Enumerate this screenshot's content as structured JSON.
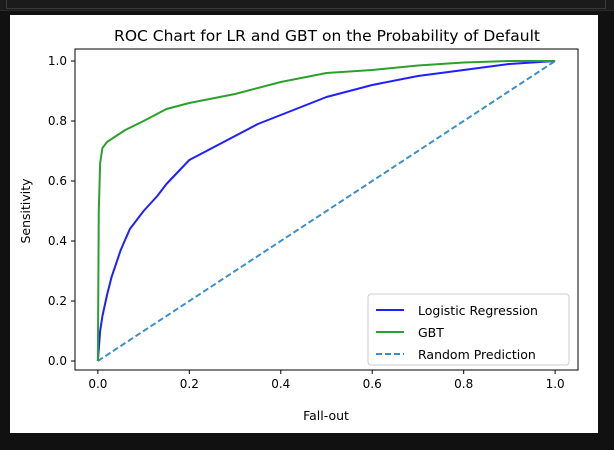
{
  "chart_data": {
    "type": "line",
    "title": "ROC Chart for LR and GBT on the Probability of Default",
    "xlabel": "Fall-out",
    "ylabel": "Sensitivity",
    "xlim": [
      -0.05,
      1.05
    ],
    "ylim": [
      -0.03,
      1.04
    ],
    "xticks": [
      0.0,
      0.2,
      0.4,
      0.6,
      0.8,
      1.0
    ],
    "xtick_labels": [
      "0.0",
      "0.2",
      "0.4",
      "0.6",
      "0.8",
      "1.0"
    ],
    "yticks": [
      0.0,
      0.2,
      0.4,
      0.6,
      0.8,
      1.0
    ],
    "ytick_labels": [
      "0.0",
      "0.2",
      "0.4",
      "0.6",
      "0.8",
      "1.0"
    ],
    "grid": false,
    "legend_position": "lower-right",
    "series": [
      {
        "name": "Logistic Regression",
        "color": "#1f1fff",
        "style": "solid",
        "x": [
          0,
          0.005,
          0.01,
          0.02,
          0.03,
          0.05,
          0.07,
          0.1,
          0.13,
          0.15,
          0.2,
          0.25,
          0.3,
          0.35,
          0.4,
          0.45,
          0.5,
          0.6,
          0.7,
          0.8,
          0.9,
          1.0
        ],
        "y": [
          0,
          0.1,
          0.15,
          0.22,
          0.28,
          0.37,
          0.44,
          0.5,
          0.55,
          0.59,
          0.67,
          0.71,
          0.75,
          0.79,
          0.82,
          0.85,
          0.88,
          0.92,
          0.95,
          0.97,
          0.99,
          1.0
        ]
      },
      {
        "name": "GBT",
        "color": "#2ca02c",
        "style": "solid",
        "x": [
          0,
          0.002,
          0.005,
          0.01,
          0.02,
          0.04,
          0.06,
          0.1,
          0.15,
          0.2,
          0.3,
          0.4,
          0.5,
          0.6,
          0.7,
          0.8,
          0.9,
          1.0
        ],
        "y": [
          0,
          0.5,
          0.66,
          0.71,
          0.73,
          0.75,
          0.77,
          0.8,
          0.84,
          0.86,
          0.89,
          0.93,
          0.96,
          0.97,
          0.985,
          0.995,
          1.0,
          1.0
        ]
      },
      {
        "name": "Random Prediction",
        "color": "#3c8fc8",
        "style": "dashed",
        "x": [
          0,
          1
        ],
        "y": [
          0,
          1
        ]
      }
    ]
  }
}
